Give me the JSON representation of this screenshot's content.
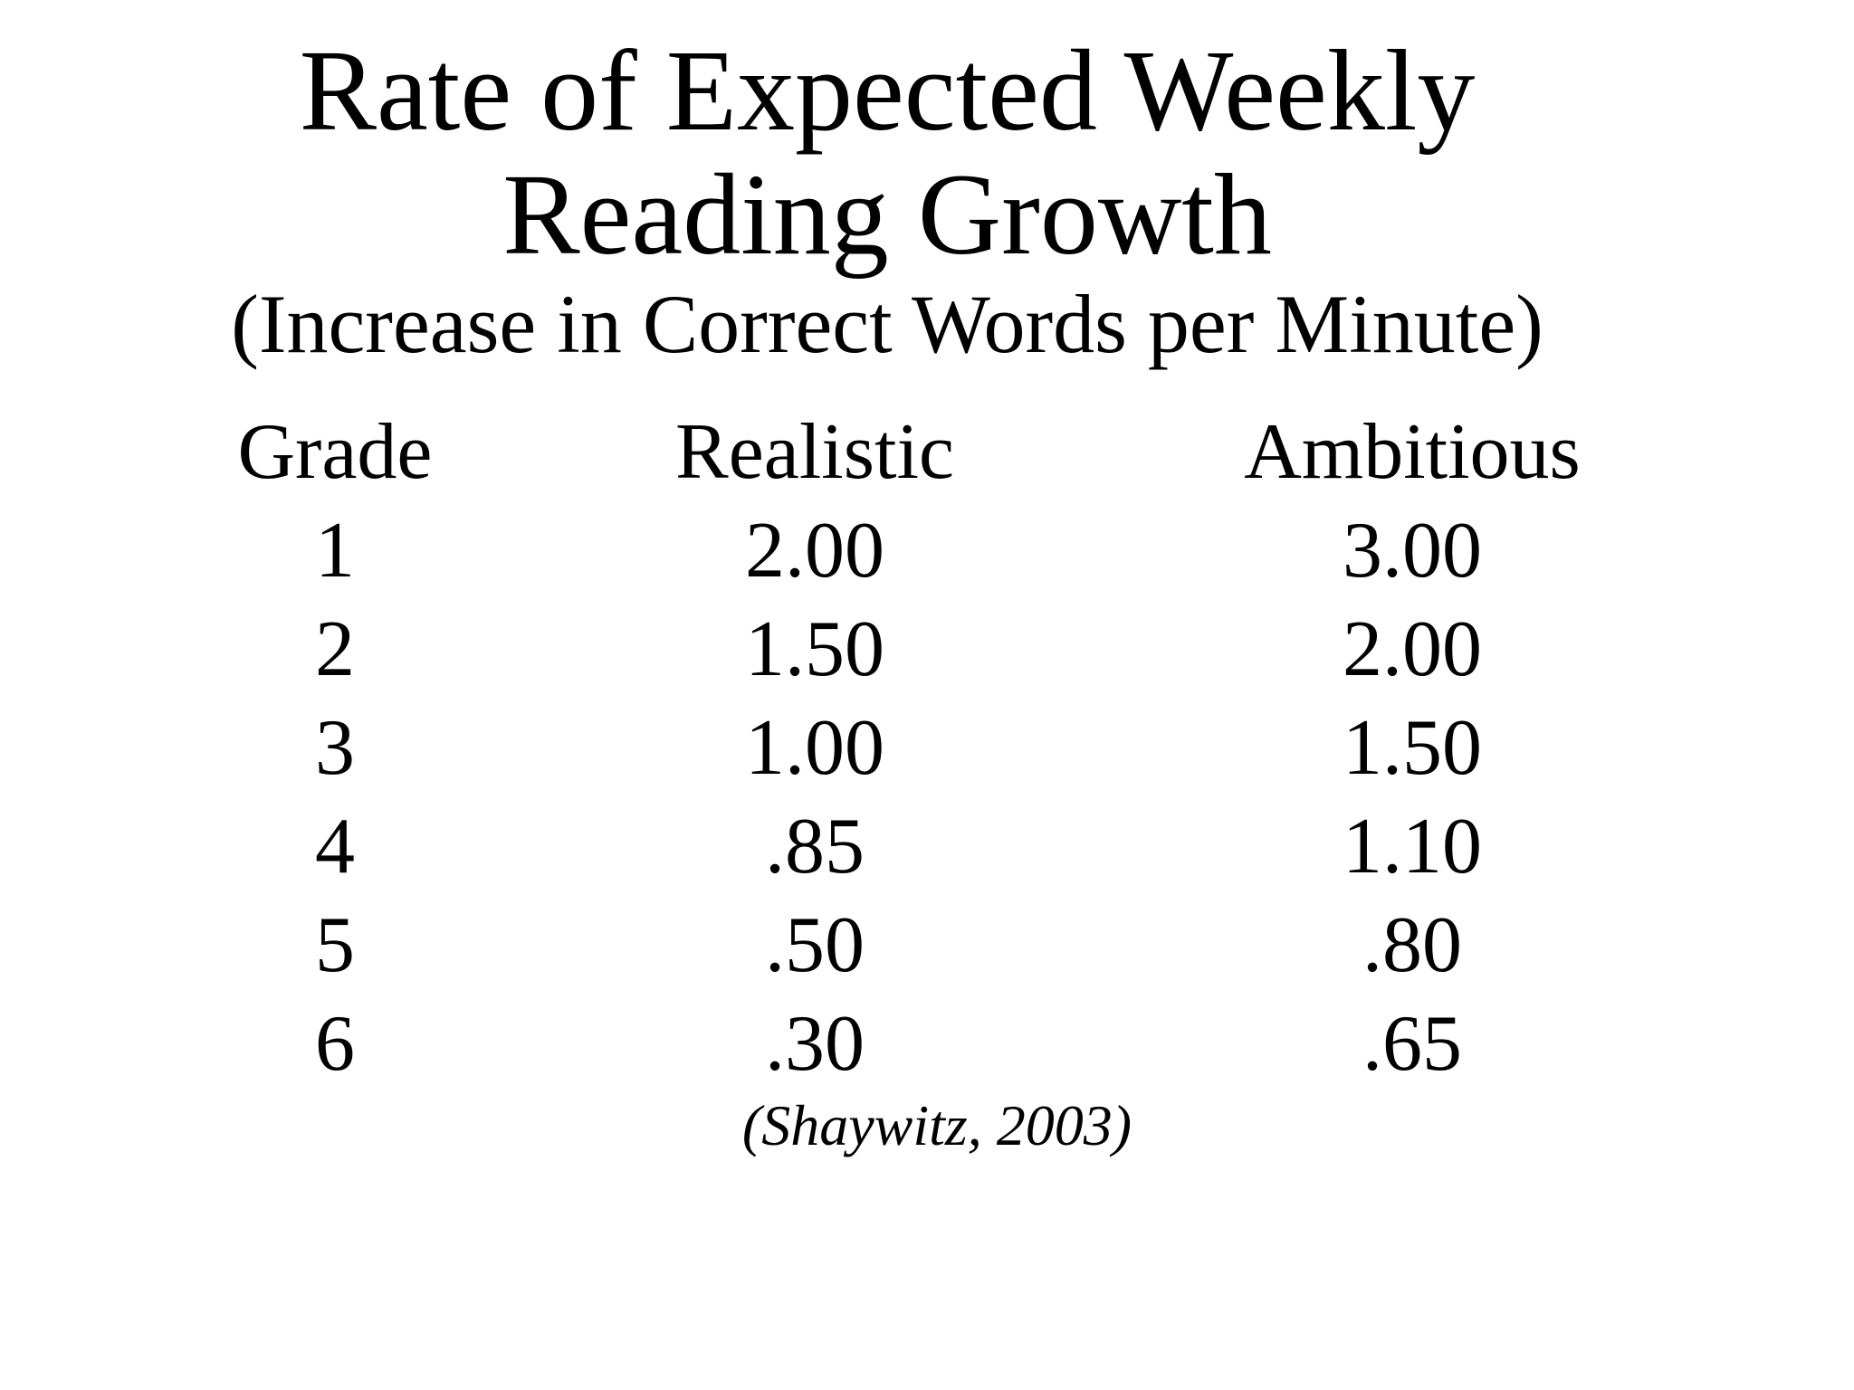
{
  "slide": {
    "background_color": "#ffffff",
    "text_color": "#000000",
    "title": {
      "line1": "Rate of Expected Weekly",
      "line2": "Reading Growth"
    },
    "subtitle": "(Increase in Correct Words per Minute)",
    "citation": "(Shaywitz, 2003)"
  },
  "chart_data": {
    "type": "table",
    "title": "Rate of Expected Weekly Reading Growth",
    "subtitle": "(Increase in Correct Words per Minute)",
    "columns": [
      "Grade",
      "Realistic",
      "Ambitious"
    ],
    "rows": [
      [
        "1",
        "2.00",
        "3.00"
      ],
      [
        "2",
        "1.50",
        "2.00"
      ],
      [
        "3",
        "1.00",
        "1.50"
      ],
      [
        "4",
        ".85",
        "1.10"
      ],
      [
        "5",
        ".50",
        ".80"
      ],
      [
        "6",
        ".30",
        ".65"
      ]
    ],
    "source": "(Shaywitz, 2003)",
    "layout_hints": {
      "grid": false,
      "alignment": "centered-columns",
      "background": "white",
      "text_color": "black"
    }
  }
}
